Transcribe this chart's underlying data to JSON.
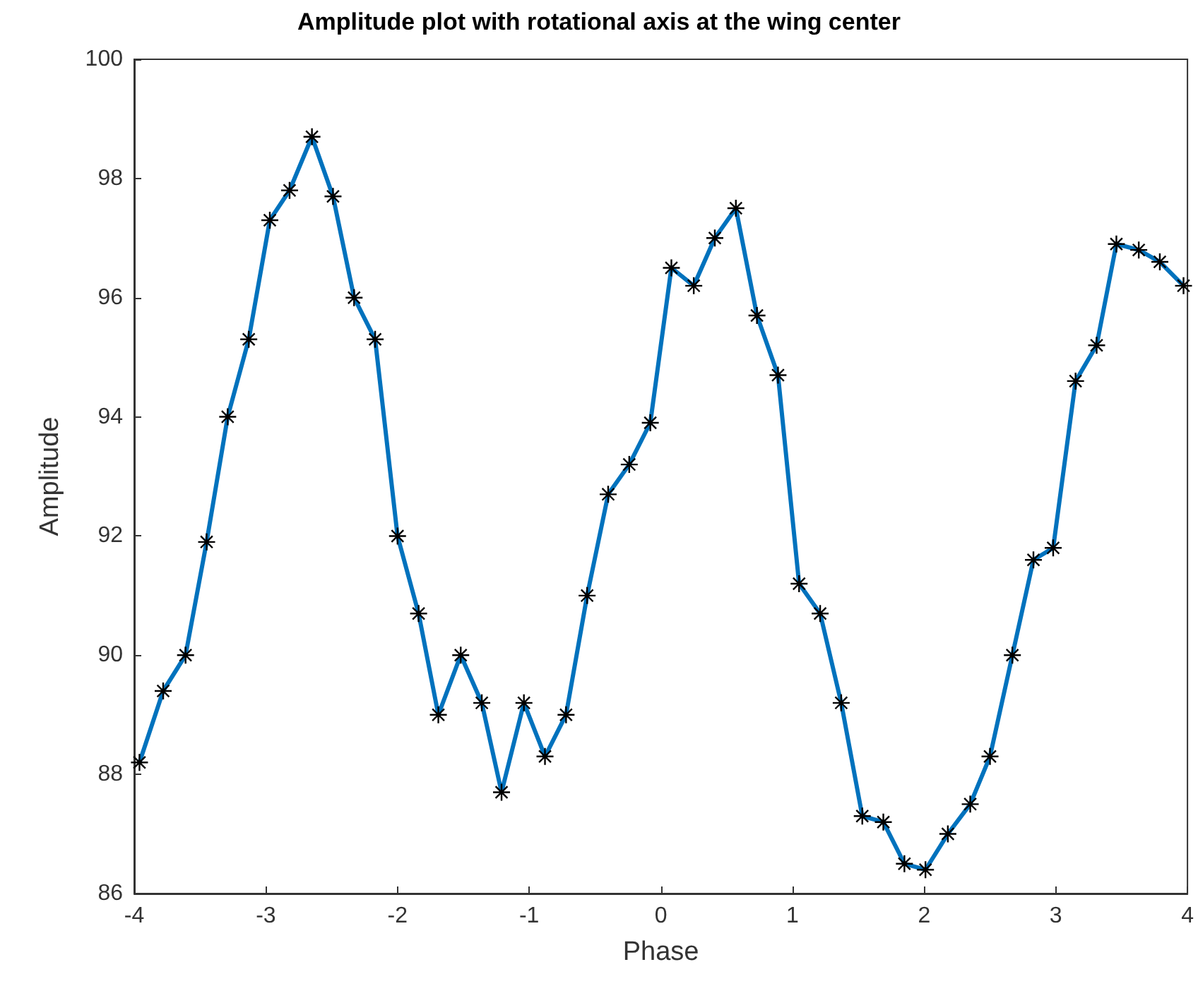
{
  "chart_data": {
    "type": "line",
    "title": "Amplitude plot with rotational axis at the wing center",
    "xlabel": "Phase",
    "ylabel": "Amplitude",
    "x": [
      -3.96,
      -3.78,
      -3.61,
      -3.45,
      -3.29,
      -3.13,
      -2.97,
      -2.82,
      -2.65,
      -2.49,
      -2.33,
      -2.17,
      -2.0,
      -1.84,
      -1.69,
      -1.52,
      -1.36,
      -1.21,
      -1.04,
      -0.88,
      -0.72,
      -0.56,
      -0.4,
      -0.24,
      -0.08,
      0.08,
      0.25,
      0.41,
      0.57,
      0.73,
      0.89,
      1.05,
      1.21,
      1.37,
      1.53,
      1.69,
      1.85,
      2.01,
      2.18,
      2.35,
      2.5,
      2.67,
      2.83,
      2.98,
      3.15,
      3.31,
      3.46,
      3.63,
      3.79,
      3.97
    ],
    "series": [
      {
        "color": "#0072bd",
        "values": [
          88.2,
          89.4,
          90.0,
          91.9,
          94.0,
          95.3,
          97.3,
          97.8,
          98.7,
          97.7,
          96.0,
          95.3,
          92.0,
          90.7,
          89.0,
          90.0,
          89.2,
          87.7,
          89.2,
          88.3,
          89.0,
          91.0,
          92.7,
          93.2,
          93.9,
          96.5,
          96.2,
          97.0,
          97.5,
          95.7,
          94.7,
          91.2,
          90.7,
          89.2,
          87.3,
          87.2,
          86.5,
          86.4,
          87.0,
          87.5,
          88.3,
          90.0,
          91.6,
          91.8,
          94.6,
          95.2,
          96.9,
          96.8,
          96.6,
          96.2
        ]
      }
    ],
    "xlim": [
      -4,
      4
    ],
    "xticks": [
      -4,
      -3,
      -2,
      -1,
      0,
      1,
      2,
      3,
      4
    ],
    "ylim": [
      86,
      100
    ],
    "yticks": [
      86,
      88,
      90,
      92,
      94,
      96,
      98,
      100
    ],
    "marker": "cross",
    "line_style": "solid"
  }
}
